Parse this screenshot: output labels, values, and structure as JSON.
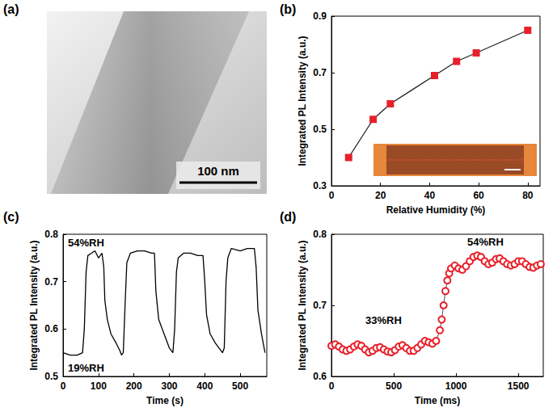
{
  "chart_data": [
    {
      "type": "image",
      "title": "(a)",
      "annotations": [
        "100 nm"
      ]
    },
    {
      "type": "line",
      "title": "(b)",
      "xlabel": "Relative Humidity (%)",
      "ylabel": "Integrated PL Intensity (a.u.)",
      "x": [
        7,
        17,
        24,
        42,
        51,
        59,
        80
      ],
      "values": [
        0.4,
        0.535,
        0.59,
        0.69,
        0.74,
        0.77,
        0.85
      ],
      "color": "#e8202a",
      "marker": "square",
      "xlim": [
        0,
        85
      ],
      "xticks": [
        0,
        20,
        40,
        60,
        80
      ],
      "ylim": [
        0.3,
        0.9
      ],
      "yticks": [
        0.3,
        0.5,
        0.7,
        0.9
      ],
      "grid": false
    },
    {
      "type": "line",
      "title": "(c)",
      "xlabel": "Time (s)",
      "ylabel": "Integrated PL Intensity (a.u.)",
      "annotations": [
        "54%RH",
        "19%RH"
      ],
      "x": [
        0,
        20,
        40,
        55,
        60,
        65,
        70,
        80,
        90,
        100,
        110,
        115,
        118,
        125,
        135,
        150,
        160,
        165,
        170,
        175,
        180,
        190,
        210,
        230,
        250,
        258,
        262,
        270,
        285,
        300,
        310,
        315,
        320,
        325,
        340,
        360,
        380,
        395,
        400,
        405,
        415,
        430,
        450,
        455,
        460,
        465,
        475,
        500,
        520,
        540,
        545,
        550,
        560,
        570
      ],
      "values": [
        0.55,
        0.545,
        0.545,
        0.55,
        0.6,
        0.72,
        0.755,
        0.76,
        0.765,
        0.75,
        0.76,
        0.73,
        0.66,
        0.62,
        0.59,
        0.57,
        0.555,
        0.545,
        0.55,
        0.65,
        0.74,
        0.76,
        0.765,
        0.765,
        0.76,
        0.76,
        0.68,
        0.62,
        0.59,
        0.56,
        0.55,
        0.6,
        0.72,
        0.75,
        0.76,
        0.76,
        0.755,
        0.755,
        0.7,
        0.63,
        0.59,
        0.57,
        0.55,
        0.56,
        0.7,
        0.75,
        0.77,
        0.765,
        0.77,
        0.77,
        0.73,
        0.64,
        0.59,
        0.55
      ],
      "color": "#000000",
      "marker": "none",
      "xlim": [
        0,
        575
      ],
      "xticks": [
        0,
        100,
        200,
        300,
        400,
        500
      ],
      "ylim": [
        0.5,
        0.8
      ],
      "yticks": [
        0.5,
        0.6,
        0.7,
        0.8
      ],
      "grid": false
    },
    {
      "type": "line",
      "title": "(d)",
      "xlabel": "Time (ms)",
      "ylabel": "Integrated PL Intensity (a.u.)",
      "annotations": [
        "33%RH",
        "54%RH"
      ],
      "x": [
        0,
        30,
        60,
        90,
        120,
        150,
        180,
        210,
        240,
        270,
        300,
        330,
        360,
        390,
        420,
        450,
        480,
        510,
        540,
        570,
        600,
        630,
        660,
        690,
        720,
        750,
        780,
        810,
        840,
        870,
        885,
        900,
        915,
        930,
        945,
        960,
        990,
        1020,
        1050,
        1080,
        1110,
        1140,
        1170,
        1200,
        1230,
        1260,
        1290,
        1320,
        1350,
        1380,
        1410,
        1440,
        1470,
        1500,
        1530,
        1560,
        1590,
        1620,
        1650,
        1680
      ],
      "values": [
        0.643,
        0.645,
        0.642,
        0.638,
        0.636,
        0.638,
        0.642,
        0.645,
        0.643,
        0.638,
        0.634,
        0.636,
        0.64,
        0.641,
        0.638,
        0.635,
        0.634,
        0.637,
        0.642,
        0.644,
        0.64,
        0.636,
        0.636,
        0.64,
        0.645,
        0.65,
        0.648,
        0.646,
        0.65,
        0.665,
        0.68,
        0.7,
        0.72,
        0.735,
        0.745,
        0.752,
        0.756,
        0.752,
        0.75,
        0.755,
        0.762,
        0.768,
        0.77,
        0.768,
        0.762,
        0.758,
        0.76,
        0.765,
        0.766,
        0.762,
        0.758,
        0.756,
        0.758,
        0.762,
        0.762,
        0.758,
        0.754,
        0.753,
        0.756,
        0.758
      ],
      "color": "#e8202a",
      "marker": "circle_open",
      "xlim": [
        0,
        1700
      ],
      "xticks": [
        0,
        500,
        1000,
        1500
      ],
      "ylim": [
        0.6,
        0.8
      ],
      "yticks": [
        0.6,
        0.7,
        0.8
      ],
      "grid": false
    }
  ]
}
